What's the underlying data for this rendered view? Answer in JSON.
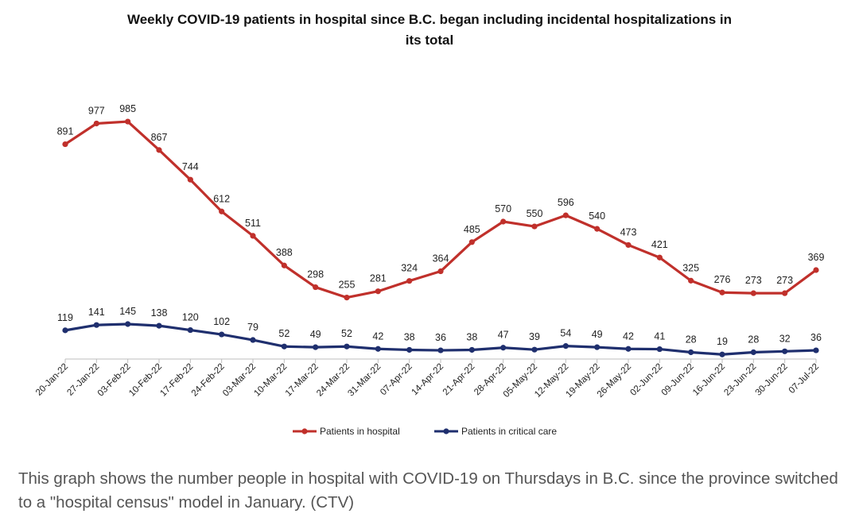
{
  "chart_data": {
    "type": "line",
    "title": "Weekly COVID-19 patients in hospital since B.C. began including incidental hospitalizations in its total",
    "xlabel": "",
    "ylabel": "",
    "grid": false,
    "legend_position": "bottom",
    "categories": [
      "20-Jan-22",
      "27-Jan-22",
      "03-Feb-22",
      "10-Feb-22",
      "17-Feb-22",
      "24-Feb-22",
      "03-Mar-22",
      "10-Mar-22",
      "17-Mar-22",
      "24-Mar-22",
      "31-Mar-22",
      "07-Apr-22",
      "14-Apr-22",
      "21-Apr-22",
      "28-Apr-22",
      "05-May-22",
      "12-May-22",
      "19-May-22",
      "26-May-22",
      "02-Jun-22",
      "09-Jun-22",
      "16-Jun-22",
      "23-Jun-22",
      "30-Jun-22",
      "07-Jul-22"
    ],
    "series": [
      {
        "name": "Patients in hospital",
        "color": "#c0302b",
        "values": [
          891,
          977,
          985,
          867,
          744,
          612,
          511,
          388,
          298,
          255,
          281,
          324,
          364,
          485,
          570,
          550,
          596,
          540,
          473,
          421,
          325,
          276,
          273,
          273,
          369
        ]
      },
      {
        "name": "Patients in critical care",
        "color": "#1f2f6e",
        "values": [
          119,
          141,
          145,
          138,
          120,
          102,
          79,
          52,
          49,
          52,
          42,
          38,
          36,
          38,
          47,
          39,
          54,
          49,
          42,
          41,
          28,
          19,
          28,
          32,
          36
        ]
      }
    ]
  },
  "caption": "This graph shows the number people in hospital with COVID-19 on Thursdays in B.C. since the province switched to a \"hospital census\" model in January. (CTV)"
}
